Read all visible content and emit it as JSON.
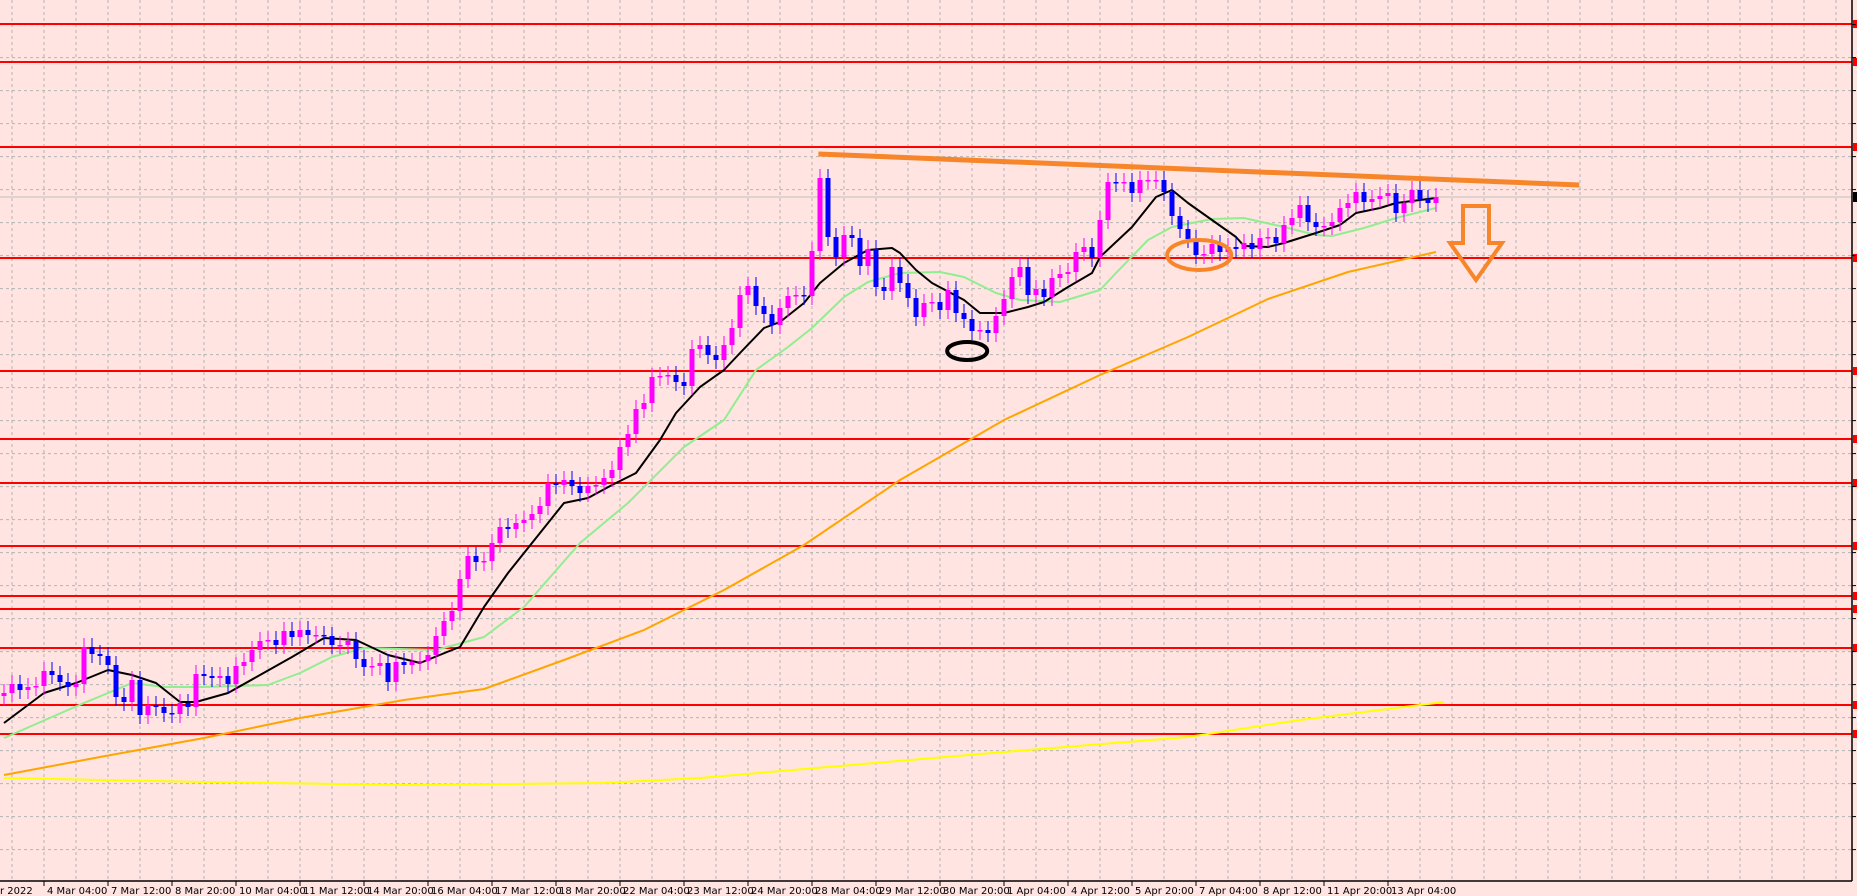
{
  "chart_data": {
    "type": "candlestick",
    "title": "",
    "xlabel": "",
    "ylabel": "",
    "ylim": [
      0.4,
      90
    ],
    "grid": true,
    "colors": {
      "background": "#ffe4e1",
      "bull_candle": "#ff00ff",
      "bear_candle": "#0000ff",
      "grid": "#b4b4b4",
      "level_line": "#ff0000",
      "current_price_line": "#c0c0c0",
      "trendline": "#f7862a",
      "ma_fast": "#000000",
      "ma_mid": "#90ee90",
      "ma_slow": "#ffa500",
      "ma_long": "#ffff00"
    },
    "first_open": 20.4,
    "closes": [
      20.7,
      21.6,
      21.0,
      21.3,
      21.4,
      22.9,
      22.5,
      21.8,
      21.3,
      21.6,
      25.3,
      24.6,
      24.4,
      23.5,
      20.3,
      19.8,
      22.0,
      18.5,
      19.5,
      19.3,
      18.7,
      18.6,
      19.7,
      19.3,
      22.6,
      22.4,
      22.2,
      22.4,
      21.6,
      23.4,
      23.8,
      25.0,
      25.9,
      26.0,
      25.5,
      26.9,
      26.3,
      27.0,
      26.5,
      26.5,
      26.4,
      25.5,
      25.5,
      25.9,
      24.1,
      23.3,
      23.4,
      23.7,
      21.8,
      23.8,
      23.5,
      23.8,
      23.9,
      24.5,
      26.4,
      27.9,
      28.9,
      32.1,
      34.4,
      33.8,
      33.9,
      35.7,
      37.3,
      37.1,
      37.7,
      38.0,
      38.6,
      39.4,
      41.7,
      41.5,
      42.0,
      41.4,
      40.7,
      41.4,
      41.5,
      42.2,
      43.0,
      45.3,
      46.6,
      49.1,
      49.7,
      52.3,
      52.4,
      52.5,
      51.8,
      51.4,
      55.1,
      55.5,
      54.5,
      54.0,
      55.5,
      57.2,
      60.5,
      61.4,
      59.4,
      58.6,
      57.5,
      59.2,
      60.4,
      60.5,
      60.4,
      64.9,
      72.2,
      66.3,
      64.3,
      66.5,
      66.2,
      63.4,
      65.1,
      61.3,
      60.9,
      63.3,
      61.7,
      60.2,
      58.3,
      59.7,
      59.8,
      59.0,
      61.0,
      58.7,
      58.1,
      56.9,
      57.0,
      56.7,
      58.4,
      60.1,
      62.3,
      63.3,
      60.5,
      61.1,
      60.3,
      62.2,
      62.6,
      62.8,
      64.8,
      65.3,
      64.2,
      68.0,
      71.8,
      71.7,
      71.8,
      70.7,
      72.0,
      72.0,
      72.0,
      70.8,
      68.4,
      67.1,
      66.1,
      64.5,
      64.6,
      65.6,
      64.8,
      65.3,
      65.1,
      65.7,
      65.1,
      66.2,
      66.3,
      65.7,
      67.5,
      68.2,
      69.5,
      67.8,
      67.3,
      67.4,
      67.8,
      69.2,
      69.7,
      70.8,
      69.8,
      70.1,
      70.4,
      70.7,
      68.7,
      69.7,
      71.0,
      70.1,
      69.7,
      70.3
    ],
    "moving_averages": [
      {
        "role": "fast",
        "color": "#000000",
        "points": [
          [
            0,
            17.7
          ],
          [
            5,
            20.7
          ],
          [
            9,
            21.7
          ],
          [
            13,
            23.0
          ],
          [
            16,
            22.5
          ],
          [
            19,
            21.7
          ],
          [
            22,
            19.8
          ],
          [
            24,
            19.8
          ],
          [
            28,
            20.7
          ],
          [
            32,
            22.5
          ],
          [
            36,
            24.3
          ],
          [
            40,
            26.2
          ],
          [
            44,
            26.0
          ],
          [
            48,
            24.5
          ],
          [
            52,
            23.7
          ],
          [
            56,
            25.0
          ],
          [
            57,
            25.3
          ],
          [
            60,
            29.3
          ],
          [
            63,
            32.7
          ],
          [
            66,
            35.7
          ],
          [
            70,
            39.7
          ],
          [
            73,
            40.2
          ],
          [
            76,
            41.5
          ],
          [
            79,
            42.7
          ],
          [
            82,
            46.0
          ],
          [
            84,
            48.7
          ],
          [
            87,
            51.3
          ],
          [
            90,
            53.0
          ],
          [
            92,
            54.7
          ],
          [
            95,
            57.2
          ],
          [
            97,
            57.8
          ],
          [
            100,
            59.7
          ],
          [
            102,
            61.7
          ],
          [
            105,
            63.7
          ],
          [
            108,
            65.0
          ],
          [
            111,
            65.2
          ],
          [
            112,
            64.7
          ],
          [
            114,
            63.0
          ],
          [
            116,
            61.7
          ],
          [
            120,
            60.0
          ],
          [
            122,
            58.7
          ],
          [
            125,
            58.7
          ],
          [
            128,
            59.3
          ],
          [
            130,
            59.8
          ],
          [
            133,
            61.3
          ],
          [
            136,
            62.7
          ],
          [
            137,
            64.3
          ],
          [
            141,
            67.3
          ],
          [
            144,
            70.3
          ],
          [
            146,
            71.0
          ],
          [
            148,
            69.7
          ],
          [
            151,
            68.0
          ],
          [
            154,
            66.3
          ],
          [
            155,
            65.4
          ],
          [
            158,
            65.3
          ],
          [
            160,
            65.7
          ],
          [
            164,
            66.7
          ],
          [
            167,
            67.5
          ],
          [
            169,
            68.7
          ],
          [
            172,
            69.2
          ],
          [
            174,
            69.7
          ],
          [
            179,
            70.2
          ]
        ]
      },
      {
        "role": "mid",
        "color": "#90ee90",
        "points": [
          [
            0,
            16.2
          ],
          [
            10,
            19.7
          ],
          [
            16,
            21.7
          ],
          [
            20,
            21.3
          ],
          [
            25,
            21.3
          ],
          [
            33,
            21.5
          ],
          [
            37,
            22.7
          ],
          [
            41,
            24.3
          ],
          [
            45,
            25.2
          ],
          [
            54,
            25.0
          ],
          [
            60,
            26.3
          ],
          [
            65,
            29.3
          ],
          [
            72,
            35.7
          ],
          [
            78,
            39.7
          ],
          [
            85,
            45.3
          ],
          [
            90,
            48.0
          ],
          [
            94,
            53.0
          ],
          [
            98,
            55.3
          ],
          [
            101,
            57.2
          ],
          [
            105,
            60.3
          ],
          [
            108,
            61.8
          ],
          [
            112,
            62.7
          ],
          [
            117,
            62.8
          ],
          [
            120,
            62.3
          ],
          [
            124,
            60.7
          ],
          [
            127,
            60.0
          ],
          [
            132,
            59.8
          ],
          [
            137,
            61.0
          ],
          [
            139,
            62.7
          ],
          [
            143,
            66.0
          ],
          [
            146,
            67.3
          ],
          [
            151,
            68.1
          ],
          [
            155,
            68.2
          ],
          [
            160,
            67.3
          ],
          [
            164,
            66.5
          ],
          [
            166,
            66.4
          ],
          [
            170,
            67.2
          ],
          [
            174,
            68.2
          ],
          [
            179,
            69.2
          ]
        ]
      },
      {
        "role": "slow",
        "color": "#ffa500",
        "points": [
          [
            0,
            12.5
          ],
          [
            12,
            14.3
          ],
          [
            25,
            16.2
          ],
          [
            37,
            18.2
          ],
          [
            50,
            20.0
          ],
          [
            60,
            21.1
          ],
          [
            70,
            24.0
          ],
          [
            80,
            27.0
          ],
          [
            90,
            31.0
          ],
          [
            100,
            35.5
          ],
          [
            112,
            42.0
          ],
          [
            125,
            48.0
          ],
          [
            137,
            52.5
          ],
          [
            148,
            56.3
          ],
          [
            158,
            60.1
          ],
          [
            168,
            62.8
          ],
          [
            179,
            64.8
          ]
        ]
      },
      {
        "role": "long",
        "color": "#ffff00",
        "points": [
          [
            0,
            12.2
          ],
          [
            25,
            11.8
          ],
          [
            50,
            11.5
          ],
          [
            75,
            11.7
          ],
          [
            87,
            12.2
          ],
          [
            103,
            13.3
          ],
          [
            125,
            14.8
          ],
          [
            148,
            16.3
          ],
          [
            162,
            18.0
          ],
          [
            180,
            19.8
          ]
        ]
      }
    ],
    "horizontal_levels": [
      87.6,
      83.8,
      75.3,
      64.2,
      52.9,
      46.1,
      41.7,
      35.4,
      30.4,
      29.1,
      25.2,
      19.5,
      16.6
    ],
    "current_price": 70.3,
    "x_tick_labels": [
      {
        "bar": -3,
        "label": "r 2022"
      },
      {
        "bar": 5,
        "label": "4 Mar 04:00"
      },
      {
        "bar": 13,
        "label": "7 Mar 12:00"
      },
      {
        "bar": 21,
        "label": "8 Mar 20:00"
      },
      {
        "bar": 29,
        "label": "10 Mar 04:00"
      },
      {
        "bar": 37,
        "label": "11 Mar 12:00"
      },
      {
        "bar": 45,
        "label": "14 Mar 20:00"
      },
      {
        "bar": 53,
        "label": "16 Mar 04:00"
      },
      {
        "bar": 61,
        "label": "17 Mar 12:00"
      },
      {
        "bar": 69,
        "label": "18 Mar 20:00"
      },
      {
        "bar": 77,
        "label": "22 Mar 04:00"
      },
      {
        "bar": 85,
        "label": "23 Mar 12:00"
      },
      {
        "bar": 93,
        "label": "24 Mar 20:00"
      },
      {
        "bar": 101,
        "label": "28 Mar 04:00"
      },
      {
        "bar": 109,
        "label": "29 Mar 12:00"
      },
      {
        "bar": 117,
        "label": "30 Mar 20:00"
      },
      {
        "bar": 125,
        "label": "1 Apr 04:00"
      },
      {
        "bar": 133,
        "label": "4 Apr 12:00"
      },
      {
        "bar": 141,
        "label": "5 Apr 20:00"
      },
      {
        "bar": 149,
        "label": "7 Apr 04:00"
      },
      {
        "bar": 157,
        "label": "8 Apr 12:00"
      },
      {
        "bar": 165,
        "label": "11 Apr 20:00"
      },
      {
        "bar": 173,
        "label": "13 Apr 04:00"
      }
    ],
    "annotations": {
      "trendline": {
        "from": [
          101.8,
          74.6
        ],
        "to": [
          196.9,
          71.5
        ]
      },
      "black_ellipse": {
        "center": [
          120.4,
          54.9
        ]
      },
      "orange_ellipse": {
        "center": [
          149.4,
          64.5
        ]
      },
      "down_arrow": {
        "bar": 184
      }
    }
  }
}
